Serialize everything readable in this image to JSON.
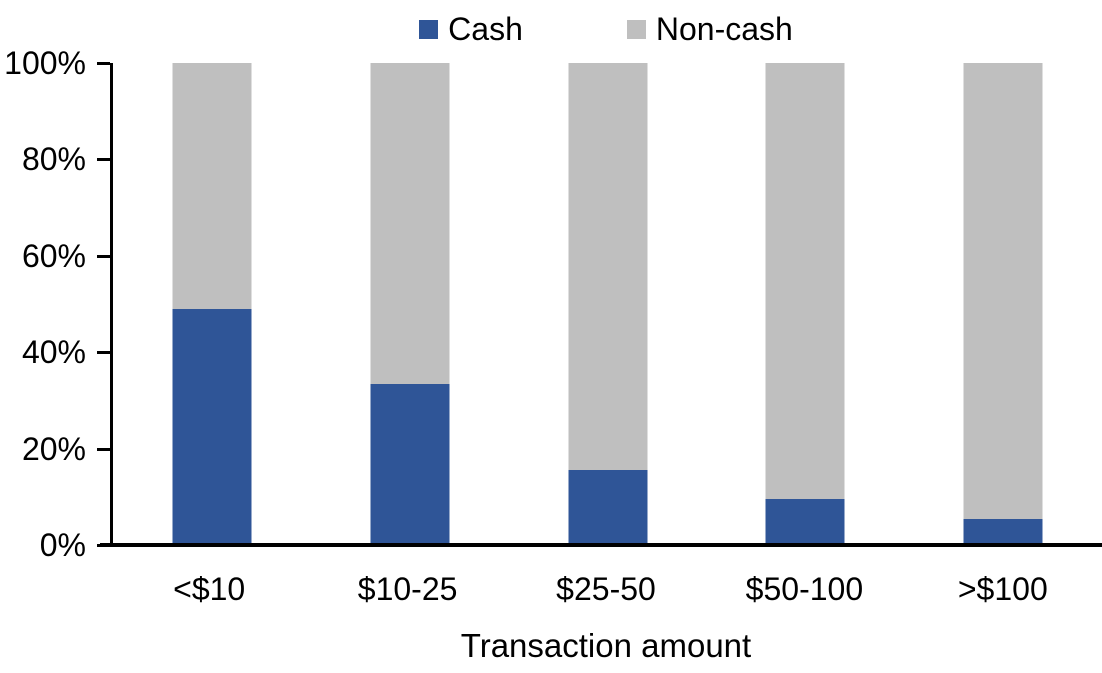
{
  "chart_data": {
    "type": "bar",
    "stacked": true,
    "stacking": "percent",
    "title": "",
    "xlabel": "Transaction amount",
    "ylabel": "",
    "categories": [
      "<$10",
      "$10-25",
      "$25-50",
      "$50-100",
      ">$100"
    ],
    "series": [
      {
        "name": "Cash",
        "color": "#2F5597",
        "values": [
          49,
          33.5,
          15.5,
          9.5,
          5.5
        ]
      },
      {
        "name": "Non-cash",
        "color": "#BFBFBF",
        "values": [
          51,
          66.5,
          84.5,
          90.5,
          94.5
        ]
      }
    ],
    "ylim": [
      0,
      100
    ],
    "yticks": [
      0,
      20,
      40,
      60,
      80,
      100
    ],
    "ytick_suffix": "%",
    "grid": false,
    "legend_position": "top",
    "axis_color": "#000000",
    "text_color": "#000000",
    "background_color": "#FFFFFF"
  }
}
